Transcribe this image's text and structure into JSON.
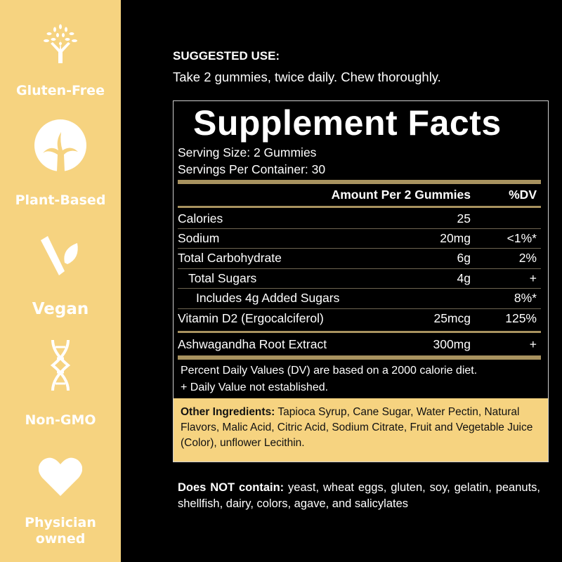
{
  "sidebar": {
    "items": [
      {
        "icon": "tree-icon",
        "label": "Gluten-Free"
      },
      {
        "icon": "plant-circle-icon",
        "label": "Plant-Based"
      },
      {
        "icon": "vegan-leaf-icon",
        "label": "Vegan"
      },
      {
        "icon": "dna-icon",
        "label": "Non-GMO"
      },
      {
        "icon": "heart-icon",
        "label": "Physician owned"
      }
    ]
  },
  "suggested_use": {
    "title": "SUGGESTED USE:",
    "text": "Take 2 gummies, twice daily. Chew thoroughly."
  },
  "facts": {
    "title": "Supplement Facts",
    "serving_size": "Serving Size: 2 Gummies",
    "servings_per_container": "Servings Per Container: 30",
    "header": {
      "amount": "Amount Per 2 Gummies",
      "dv": "%DV"
    },
    "rows": [
      {
        "name": "Calories",
        "amount": "25",
        "dv": ""
      },
      {
        "name": "Sodium",
        "amount": "20mg",
        "dv": "<1%*"
      },
      {
        "name": "Total Carbohydrate",
        "amount": "6g",
        "dv": "2%"
      },
      {
        "name": "Total Sugars",
        "amount": "4g",
        "dv": "+"
      },
      {
        "name": "Includes 4g Added Sugars",
        "amount": "",
        "dv": "8%*"
      },
      {
        "name": "Vitamin D2 (Ergocalciferol)",
        "amount": "25mcg",
        "dv": "125%"
      },
      {
        "name": "Ashwagandha Root Extract",
        "amount": "300mg",
        "dv": "+"
      }
    ],
    "footnote1": "Percent Daily Values (DV) are based on a 2000 calorie diet.",
    "footnote2": "+ Daily Value not established.",
    "other_ingredients_label": "Other Ingredients:",
    "other_ingredients": " Tapioca Syrup, Cane Sugar, Water Pectin, Natural Flavors, Malic Acid, Citric Acid, Sodium Citrate, Fruit and Vegetable Juice (Color), unflower Lecithin."
  },
  "does_not_contain": {
    "label": "Does NOT contain:",
    "text": " yeast, wheat eggs, gluten, soy, gelatin, peanuts, shellfish, dairy, colors, agave, and salicylates"
  },
  "colors": {
    "sidebar": "#f6d380",
    "gold_rule": "#a8925f",
    "background": "#000000"
  }
}
